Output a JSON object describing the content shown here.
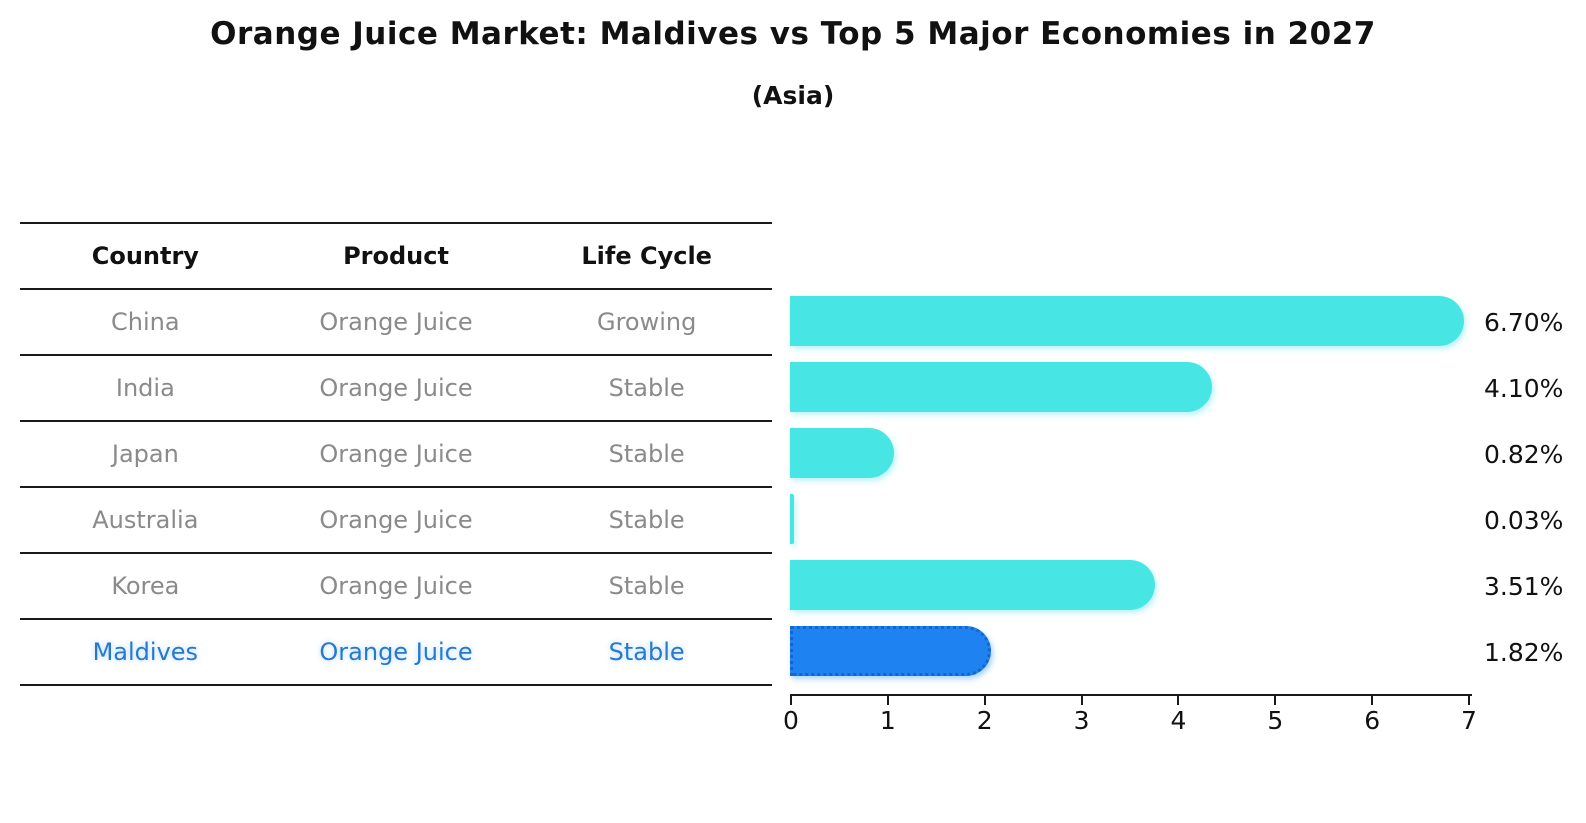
{
  "title": "Orange Juice Market: Maldives vs Top 5 Major Economies in 2027",
  "subtitle": "(Asia)",
  "table": {
    "headers": [
      "Country",
      "Product",
      "Life Cycle"
    ],
    "rows": [
      {
        "country": "China",
        "product": "Orange Juice",
        "life_cycle": "Growing",
        "highlight": false
      },
      {
        "country": "India",
        "product": "Orange Juice",
        "life_cycle": "Stable",
        "highlight": false
      },
      {
        "country": "Japan",
        "product": "Orange Juice",
        "life_cycle": "Stable",
        "highlight": false
      },
      {
        "country": "Australia",
        "product": "Orange Juice",
        "life_cycle": "Stable",
        "highlight": false
      },
      {
        "country": "Korea",
        "product": "Orange Juice",
        "life_cycle": "Stable",
        "highlight": false
      },
      {
        "country": "Maldives",
        "product": "Orange Juice",
        "life_cycle": "Stable",
        "highlight": true
      }
    ]
  },
  "chart_data": {
    "type": "bar",
    "orientation": "horizontal",
    "title": "Orange Juice Market: Maldives vs Top 5 Major Economies in 2027",
    "subtitle": "(Asia)",
    "categories": [
      "China",
      "India",
      "Japan",
      "Australia",
      "Korea",
      "Maldives"
    ],
    "values": [
      6.7,
      4.1,
      0.82,
      0.03,
      3.51,
      1.82
    ],
    "value_labels": [
      "6.70%",
      "4.10%",
      "0.82%",
      "0.03%",
      "3.51%",
      "1.82%"
    ],
    "xlim": [
      0,
      7
    ],
    "xticks": [
      0,
      1,
      2,
      3,
      4,
      5,
      6,
      7
    ],
    "xlabel": "",
    "ylabel": "",
    "grid": false,
    "legend": "none",
    "highlight_index": 5
  },
  "colors": {
    "bar": "#47E6E4",
    "highlight-bar": "#1E82F0",
    "highlight-border": "#1565D0",
    "highlight-text": "#2878CE",
    "table-text": "#8A8A8A",
    "heading-text": "#111111",
    "line": "#1A1A1A"
  }
}
